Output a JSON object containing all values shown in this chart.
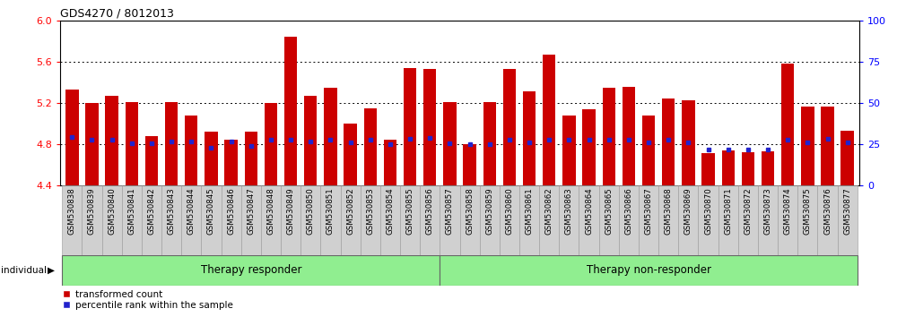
{
  "title": "GDS4270 / 8012013",
  "samples": [
    "GSM530838",
    "GSM530839",
    "GSM530840",
    "GSM530841",
    "GSM530842",
    "GSM530843",
    "GSM530844",
    "GSM530845",
    "GSM530846",
    "GSM530847",
    "GSM530848",
    "GSM530849",
    "GSM530850",
    "GSM530851",
    "GSM530852",
    "GSM530853",
    "GSM530854",
    "GSM530855",
    "GSM530856",
    "GSM530857",
    "GSM530858",
    "GSM530859",
    "GSM530860",
    "GSM530861",
    "GSM530862",
    "GSM530863",
    "GSM530864",
    "GSM530865",
    "GSM530866",
    "GSM530867",
    "GSM530868",
    "GSM530869",
    "GSM530870",
    "GSM530871",
    "GSM530872",
    "GSM530873",
    "GSM530874",
    "GSM530875",
    "GSM530876",
    "GSM530877"
  ],
  "bar_values": [
    5.33,
    5.2,
    5.27,
    5.21,
    4.88,
    5.21,
    5.08,
    4.92,
    4.84,
    4.92,
    5.2,
    5.84,
    5.27,
    5.35,
    5.0,
    5.15,
    4.84,
    5.54,
    5.53,
    5.21,
    4.8,
    5.21,
    5.53,
    5.31,
    5.67,
    5.08,
    5.14,
    5.35,
    5.36,
    5.08,
    5.24,
    5.23,
    4.71,
    4.74,
    4.72,
    4.73,
    5.58,
    5.17,
    5.17,
    4.93
  ],
  "percentile_values": [
    4.87,
    4.84,
    4.84,
    4.81,
    4.81,
    4.83,
    4.83,
    4.77,
    4.83,
    4.78,
    4.84,
    4.84,
    4.83,
    4.84,
    4.82,
    4.84,
    4.8,
    4.85,
    4.86,
    4.81,
    4.8,
    4.8,
    4.84,
    4.82,
    4.84,
    4.84,
    4.84,
    4.84,
    4.84,
    4.82,
    4.84,
    4.82,
    4.75,
    4.75,
    4.75,
    4.75,
    4.84,
    4.82,
    4.85,
    4.82
  ],
  "group1_count": 19,
  "group1_label": "Therapy responder",
  "group2_label": "Therapy non-responder",
  "bar_color": "#CC0000",
  "percentile_color": "#2222CC",
  "ylim_left": [
    4.4,
    6.0
  ],
  "ylim_right": [
    0,
    100
  ],
  "yticks_left": [
    4.4,
    4.8,
    5.2,
    5.6,
    6.0
  ],
  "yticks_right": [
    0,
    25,
    50,
    75,
    100
  ],
  "grid_lines": [
    4.8,
    5.2,
    5.6
  ],
  "group_fill": "#90EE90",
  "group_edge": "#666666",
  "tick_bg": "#D0D0D0",
  "bar_width": 0.65,
  "legend_items": [
    "transformed count",
    "percentile rank within the sample"
  ]
}
